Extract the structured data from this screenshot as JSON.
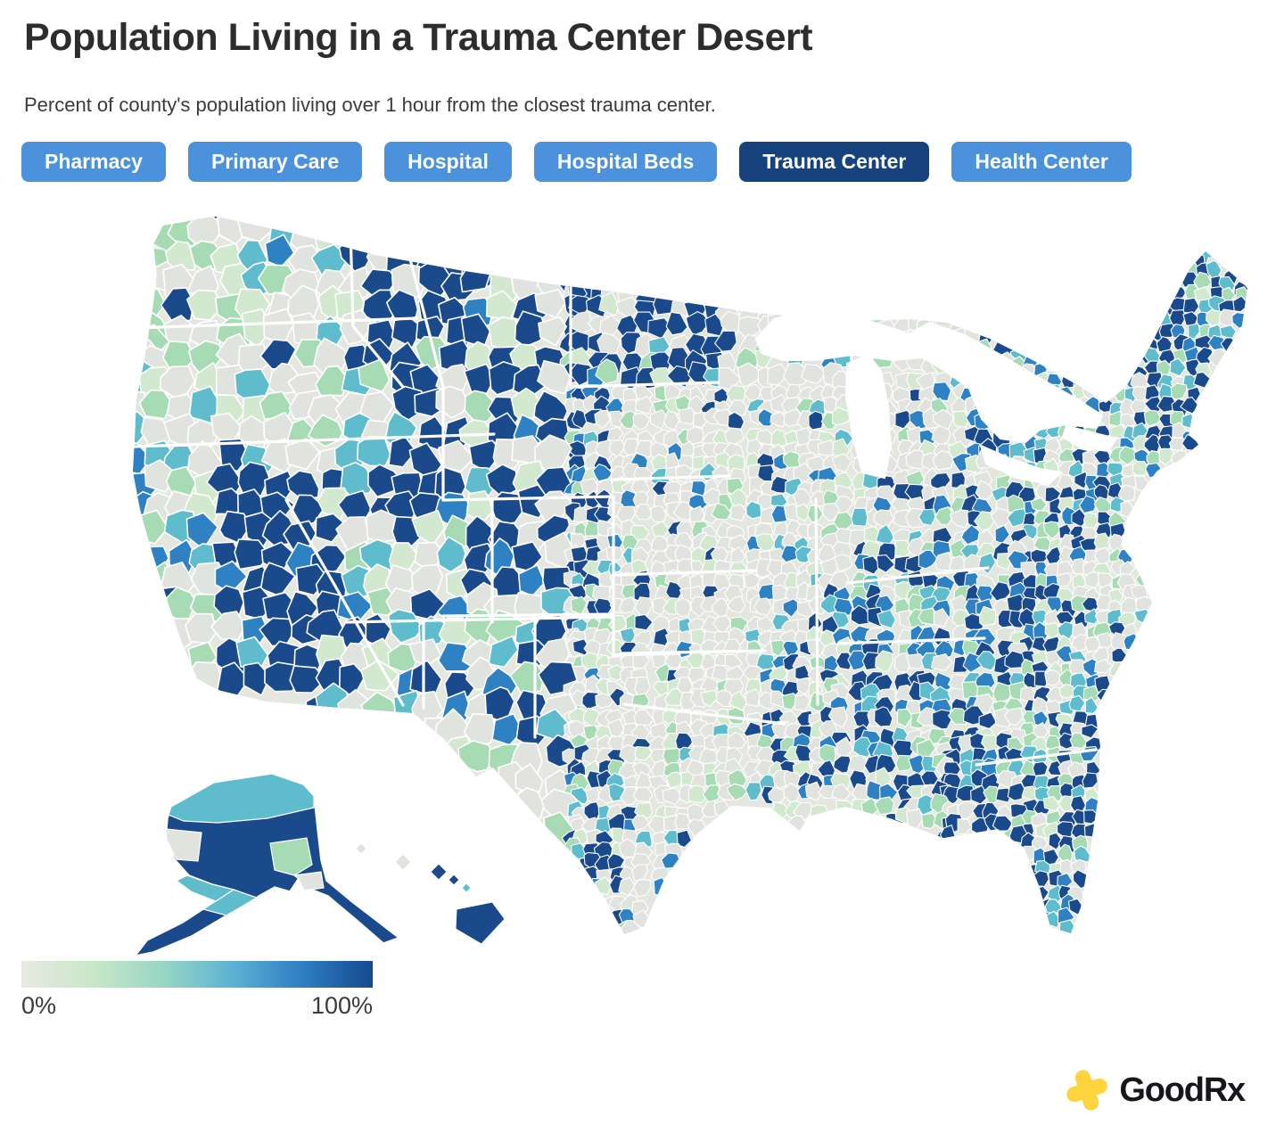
{
  "header": {
    "title": "Population Living in a Trauma Center Desert",
    "subtitle": "Percent of county's population living over 1 hour from the closest trauma center."
  },
  "tabs": [
    {
      "label": "Pharmacy",
      "active": false
    },
    {
      "label": "Primary Care",
      "active": false
    },
    {
      "label": "Hospital",
      "active": false
    },
    {
      "label": "Hospital Beds",
      "active": false
    },
    {
      "label": "Trauma Center",
      "active": true
    },
    {
      "label": "Health Center",
      "active": false
    }
  ],
  "tab_colors": {
    "background": "#4b91dc",
    "active_background": "#16427e",
    "text": "#ffffff"
  },
  "map": {
    "type": "choropleth",
    "region": "United States counties",
    "insets": [
      "alaska",
      "hawaii"
    ],
    "border_color": "#ffffff",
    "palette": {
      "gray": "#e1e3de",
      "pale_green": "#d2e8cf",
      "green": "#a6dbb4",
      "teal": "#5fbccd",
      "blue": "#2e81c2",
      "navy": "#1b4a8c"
    }
  },
  "legend": {
    "min_label": "0%",
    "max_label": "100%",
    "gradient": [
      "#e7eae3",
      "#c9e7c8",
      "#99d6c4",
      "#5cb2d4",
      "#2d7fc2",
      "#17498e"
    ]
  },
  "logo": {
    "good": "Good",
    "rx": "Rx",
    "plus_color": "#ffd33c",
    "text_color": "#17171b"
  }
}
